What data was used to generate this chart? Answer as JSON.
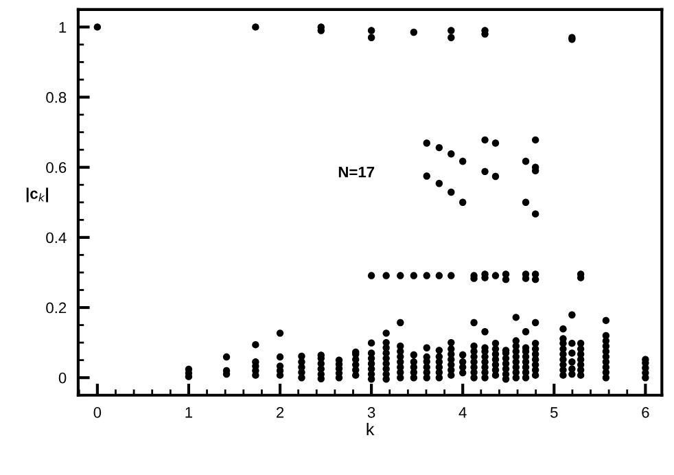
{
  "chart_data": {
    "type": "scatter",
    "xlabel": "k",
    "ylabel": "|c$_{k}$|",
    "annotations": [
      "N=17"
    ],
    "xlim": [
      -0.21,
      6.18
    ],
    "ylim": [
      -0.05,
      1.05
    ],
    "xticks": [
      0,
      1,
      2,
      3,
      4,
      5,
      6
    ],
    "yticks": [
      0,
      0.2,
      0.4,
      0.6,
      0.8,
      1
    ],
    "grid": false,
    "marker": "circle",
    "legend": false,
    "series": [
      {
        "color": "#000000",
        "x": [
          0,
          1,
          1,
          1,
          1.414,
          1.414,
          1.414,
          1.732,
          1.732,
          1.732,
          1.732,
          1.732,
          1.732,
          2,
          2,
          2,
          2,
          2,
          2.236,
          2.236,
          2.236,
          2.236,
          2.236,
          2.449,
          2.449,
          2.449,
          2.449,
          2.449,
          2.449,
          2.449,
          2.449,
          2.646,
          2.646,
          2.646,
          2.646,
          2.646,
          2.828,
          2.828,
          2.828,
          2.828,
          2.828,
          2.828,
          3,
          3,
          3,
          3,
          3,
          3,
          3,
          3,
          3,
          3,
          3.162,
          3.162,
          3.162,
          3.162,
          3.162,
          3.162,
          3.162,
          3.162,
          3.162,
          3.162,
          3.317,
          3.317,
          3.317,
          3.317,
          3.317,
          3.317,
          3.317,
          3.317,
          3.317,
          3.464,
          3.464,
          3.464,
          3.464,
          3.464,
          3.464,
          3.464,
          3.606,
          3.606,
          3.606,
          3.606,
          3.606,
          3.606,
          3.606,
          3.606,
          3.606,
          3.742,
          3.742,
          3.742,
          3.742,
          3.742,
          3.742,
          3.742,
          3.742,
          3.742,
          3.873,
          3.873,
          3.873,
          3.873,
          3.873,
          3.873,
          3.873,
          3.873,
          3.873,
          3.873,
          3.873,
          3.873,
          4,
          4,
          4,
          4,
          4,
          4,
          4.123,
          4.123,
          4.123,
          4.123,
          4.123,
          4.123,
          4.123,
          4.123,
          4.123,
          4.123,
          4.243,
          4.243,
          4.243,
          4.243,
          4.243,
          4.243,
          4.243,
          4.243,
          4.243,
          4.243,
          4.243,
          4.243,
          4.243,
          4.243,
          4.359,
          4.359,
          4.359,
          4.359,
          4.359,
          4.359,
          4.359,
          4.359,
          4.359,
          4.359,
          4.472,
          4.472,
          4.472,
          4.472,
          4.472,
          4.472,
          4.472,
          4.472,
          4.472,
          4.583,
          4.583,
          4.583,
          4.583,
          4.583,
          4.583,
          4.583,
          4.583,
          4.583,
          4.69,
          4.69,
          4.69,
          4.69,
          4.69,
          4.69,
          4.69,
          4.69,
          4.69,
          4.69,
          4.69,
          4.69,
          4.796,
          4.796,
          4.796,
          4.796,
          4.796,
          4.796,
          4.796,
          4.796,
          4.796,
          4.796,
          4.796,
          4.796,
          4.796,
          4.796,
          5.099,
          5.099,
          5.099,
          5.099,
          5.099,
          5.099,
          5.099,
          5.099,
          5.099,
          5.196,
          5.196,
          5.196,
          5.196,
          5.196,
          5.196,
          5.196,
          5.196,
          5.292,
          5.292,
          5.292,
          5.292,
          5.292,
          5.292,
          5.292,
          5.292,
          5.292,
          5.568,
          5.568,
          5.568,
          5.568,
          5.568,
          5.568,
          5.568,
          5.568,
          5.568,
          5.568,
          6,
          6,
          6,
          6,
          6
        ],
        "values": [
          1.0,
          0.003,
          0.013,
          0.024,
          0.059,
          0.01,
          0.02,
          1.0,
          0.094,
          0.007,
          0.02,
          0.033,
          0.045,
          0.127,
          0.059,
          0.007,
          0.02,
          0.033,
          0.0,
          0.015,
          0.03,
          0.045,
          0.061,
          1.0,
          0.99,
          -0.003,
          0.01,
          0.025,
          0.04,
          0.055,
          0.064,
          0.0,
          0.013,
          0.026,
          0.038,
          0.05,
          0.007,
          0.022,
          0.037,
          0.052,
          0.067,
          0.073,
          0.99,
          0.97,
          0.291,
          0.099,
          -0.004,
          0.01,
          0.025,
          0.04,
          0.055,
          0.07,
          0.291,
          0.127,
          -0.004,
          0.01,
          0.025,
          0.04,
          0.055,
          0.07,
          0.085,
          0.1,
          0.291,
          0.157,
          0.0,
          0.015,
          0.03,
          0.045,
          0.06,
          0.075,
          0.09,
          0.985,
          0.291,
          0.0,
          0.015,
          0.03,
          0.045,
          0.065,
          0.669,
          0.575,
          0.291,
          0.085,
          0.0,
          0.015,
          0.03,
          0.046,
          0.059,
          0.656,
          0.554,
          0.291,
          0.0,
          0.015,
          0.03,
          0.045,
          0.06,
          0.078,
          0.99,
          0.97,
          0.638,
          0.529,
          0.291,
          0.007,
          0.022,
          0.037,
          0.052,
          0.067,
          0.082,
          0.1,
          0.617,
          0.5,
          0.014,
          0.03,
          0.045,
          0.065,
          0.291,
          0.283,
          0.157,
          0.0,
          0.015,
          0.03,
          0.045,
          0.06,
          0.075,
          0.09,
          0.99,
          0.98,
          0.678,
          0.588,
          0.295,
          0.285,
          0.131,
          0.0,
          0.015,
          0.03,
          0.045,
          0.06,
          0.075,
          0.085,
          0.669,
          0.574,
          0.291,
          0.007,
          0.022,
          0.037,
          0.052,
          0.067,
          0.082,
          0.098,
          0.295,
          0.28,
          -0.004,
          0.01,
          0.025,
          0.04,
          0.055,
          0.07,
          0.078,
          0.172,
          0.0,
          0.015,
          0.03,
          0.045,
          0.06,
          0.075,
          0.09,
          0.105,
          0.617,
          0.5,
          0.295,
          0.283,
          0.131,
          0.0,
          0.015,
          0.03,
          0.045,
          0.06,
          0.075,
          0.085,
          0.678,
          0.6,
          0.59,
          0.467,
          0.295,
          0.28,
          0.157,
          0.007,
          0.022,
          0.037,
          0.052,
          0.067,
          0.082,
          0.098,
          0.139,
          0.007,
          0.022,
          0.037,
          0.052,
          0.067,
          0.082,
          0.098,
          0.111,
          0.97,
          0.965,
          0.179,
          0.098,
          0.07,
          0.045,
          0.025,
          0.01,
          0.295,
          0.285,
          0.007,
          0.022,
          0.037,
          0.052,
          0.067,
          0.082,
          0.098,
          0.163,
          0.0,
          0.015,
          0.03,
          0.045,
          0.06,
          0.075,
          0.09,
          0.105,
          0.12,
          0.0,
          0.014,
          0.028,
          0.042,
          0.052
        ]
      }
    ]
  }
}
